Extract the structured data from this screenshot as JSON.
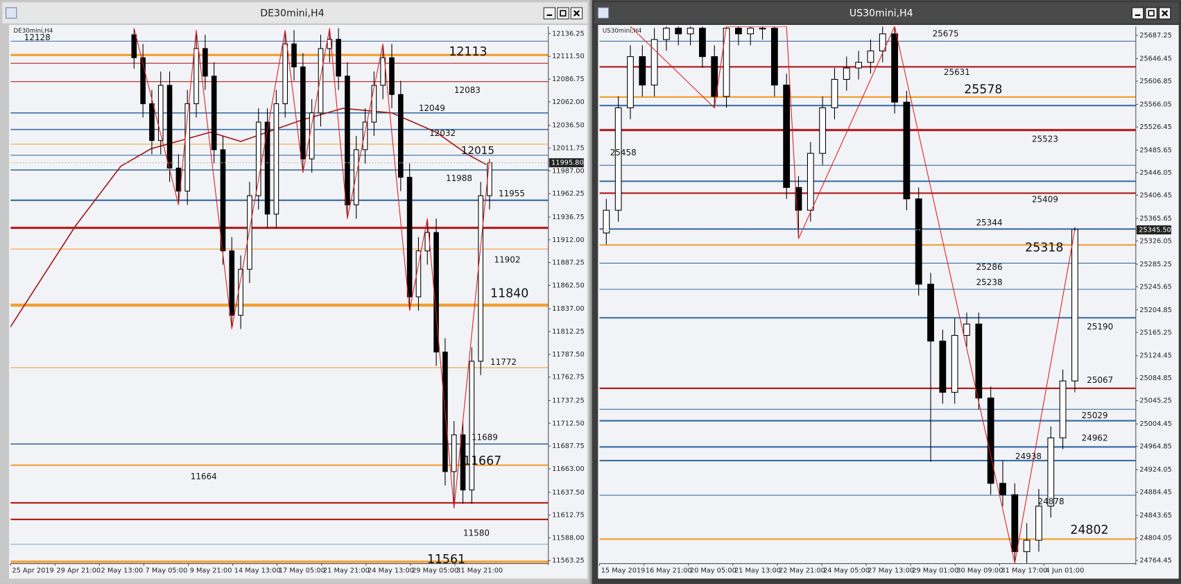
{
  "chart_data": [
    {
      "type": "candlestick",
      "title": "DE30mini,H4",
      "x_labels": [
        "25 Apr 2019",
        "29 Apr 21:00",
        "2 May 13:00",
        "7 May 05:00",
        "9 May 21:00",
        "14 May 13:00",
        "17 May 05:00",
        "21 May 21:00",
        "24 May 13:00",
        "29 May 05:00",
        "31 May 21:00"
      ],
      "open": [
        12135,
        12110,
        12060,
        12020,
        12080,
        11990,
        11965,
        12060,
        12120,
        12090,
        12010,
        11900,
        11830,
        11880,
        11960,
        12040,
        11940,
        12060,
        12125,
        12100,
        12000,
        12050,
        12120,
        12130,
        12090,
        11950,
        12010,
        12040,
        12080,
        12110,
        12070,
        11980,
        11850,
        11900,
        11920,
        11790,
        11660,
        11700,
        11640,
        11780,
        11960
      ],
      "high": [
        12142,
        12125,
        12075,
        12095,
        12095,
        12005,
        12075,
        12140,
        12135,
        12105,
        12025,
        11915,
        11895,
        11975,
        12055,
        12055,
        12075,
        12140,
        12140,
        12115,
        12065,
        12135,
        12142,
        12142,
        12105,
        12025,
        12055,
        12095,
        12125,
        12125,
        12085,
        11995,
        11915,
        11935,
        11935,
        11805,
        11715,
        11715,
        11795,
        11975,
        12000
      ],
      "low": [
        12098,
        12045,
        12005,
        12005,
        11975,
        11950,
        11950,
        12045,
        12075,
        11995,
        11885,
        11815,
        11815,
        11865,
        11945,
        11925,
        11925,
        12045,
        12085,
        11985,
        11985,
        12035,
        12105,
        12075,
        11935,
        11935,
        11995,
        12025,
        12065,
        12055,
        11965,
        11835,
        11835,
        11885,
        11775,
        11645,
        11620,
        11625,
        11625,
        11765,
        11945
      ],
      "close": [
        12110,
        12060,
        12020,
        12080,
        11990,
        11965,
        12060,
        12120,
        12090,
        12010,
        11900,
        11830,
        11880,
        11960,
        12040,
        11940,
        12060,
        12125,
        12100,
        12000,
        12050,
        12120,
        12130,
        12090,
        11950,
        12010,
        12040,
        12080,
        12110,
        12070,
        11980,
        11850,
        11900,
        11920,
        11790,
        11660,
        11700,
        11640,
        11780,
        11960,
        11995.8
      ],
      "up_color": "#ffffff",
      "down_color": "#000000",
      "ylim": [
        11560,
        12144
      ],
      "yticks": [
        12136.25,
        {
          "value": 12111.5,
          "label": "12111.50"
        },
        12086.75,
        {
          "value": 12062,
          "label": "12062.00"
        },
        {
          "value": 12036.5,
          "label": "12036.50"
        },
        12011.75,
        {
          "value": 11987,
          "label": "11987.00"
        },
        11962.25,
        11936.75,
        {
          "value": 11912,
          "label": "11912.00"
        },
        11887.25,
        {
          "value": 11862.5,
          "label": "11862.50"
        },
        {
          "value": 11837,
          "label": "11837.00"
        },
        11812.25,
        {
          "value": 11787.5,
          "label": "11787.50"
        },
        11762.75,
        11737.25,
        {
          "value": 11712.5,
          "label": "11712.50"
        },
        11687.75,
        {
          "value": 11663,
          "label": "11663.00"
        },
        {
          "value": 11637.5,
          "label": "11637.50"
        },
        11612.75,
        {
          "value": 11588,
          "label": "11588.00"
        },
        11563.25
      ],
      "last_price": {
        "value": 11995.8,
        "label": "11995.80"
      },
      "levels": {
        "values": [
          12128,
          12113,
          12104,
          12084,
          12050,
          12032,
          12016,
          12004,
          11988,
          11955,
          11925,
          11902,
          11841,
          11773,
          11690,
          11667,
          11626,
          11608,
          11581,
          11562
        ],
        "colors": [
          "#3a6ea5",
          "#f0a030",
          "#b22222",
          "#b22222",
          "#3a6ea5",
          "#3a6ea5",
          "#f0a030",
          "#3a6ea5",
          "#3a6ea5",
          "#3a6ea5",
          "#b22222",
          "#f0a030",
          "#f0a030",
          "#f0a030",
          "#3a6ea5",
          "#f0a030",
          "#b22222",
          "#b22222",
          "#7fb0d8",
          "#f0a030"
        ],
        "widths": [
          1,
          3,
          1,
          1,
          1.5,
          1.5,
          1,
          1,
          1.5,
          2,
          3,
          1,
          4,
          1,
          1.5,
          2,
          2,
          2,
          1,
          3
        ]
      },
      "level_labels": [
        12128,
        12113,
        12083,
        12049,
        12032,
        12015,
        11988,
        11955,
        11902,
        11840,
        11772,
        11689,
        11667,
        11664,
        11580,
        11561
      ],
      "zigzag": {
        "color": "#e02020",
        "x": [
          0,
          5,
          7,
          11,
          17,
          19,
          22,
          24,
          28,
          31,
          33,
          36,
          40
        ],
        "y": [
          12142,
          11950,
          12140,
          11815,
          12140,
          11985,
          12142,
          11935,
          12125,
          11835,
          11935,
          11620,
          12000
        ]
      },
      "ma": {
        "color": "#a01818",
        "x": [
          -14,
          -6.6,
          -1.5,
          1.9,
          8.6,
          12,
          18.8,
          23.5,
          29,
          34,
          37.5,
          39.6
        ],
        "values": [
          11816,
          11927,
          11992,
          12011,
          12029,
          12019,
          12042,
          12055,
          12050,
          12029,
          12005,
          11994
        ]
      }
    },
    {
      "type": "candlestick",
      "title": "US30mini,H4",
      "x_labels": [
        "15 May 2019",
        "16 May 21:00",
        "20 May 05:00",
        "21 May 13:00",
        "22 May 21:00",
        "24 May 05:00",
        "27 May 13:00",
        "29 May 01:00",
        "30 May 09:00",
        "31 May 17:00",
        "4 Jun 01:00"
      ],
      "open": [
        25340,
        25380,
        25560,
        25650,
        25600,
        25680,
        25700,
        25690,
        25700,
        25650,
        25580,
        25700,
        25690,
        25700,
        25700,
        25600,
        25420,
        25380,
        25480,
        25560,
        25610,
        25630,
        25640,
        25660,
        25690,
        25570,
        25400,
        25250,
        25150,
        25060,
        25160,
        25180,
        25050,
        24900,
        24880,
        24780,
        24800,
        24860,
        24980,
        25080
      ],
      "high": [
        25400,
        25580,
        25670,
        25670,
        25700,
        25703,
        25703,
        25703,
        25703,
        25670,
        25703,
        25703,
        25703,
        25703,
        25703,
        25620,
        25440,
        25500,
        25580,
        25630,
        25650,
        25660,
        25680,
        25703,
        25703,
        25590,
        25420,
        25270,
        25170,
        25190,
        25200,
        25200,
        25070,
        24940,
        24900,
        24830,
        24890,
        25000,
        25100,
        25350
      ],
      "low": [
        25320,
        25360,
        25540,
        25580,
        25580,
        25660,
        25670,
        25670,
        25630,
        25560,
        25560,
        25670,
        25670,
        25680,
        25580,
        25400,
        25330,
        25360,
        25460,
        25540,
        25590,
        25610,
        25620,
        25640,
        25550,
        25380,
        25230,
        24938,
        25040,
        25040,
        25140,
        25030,
        24880,
        24860,
        24760,
        24760,
        24780,
        24840,
        24960,
        25060
      ],
      "close": [
        25380,
        25560,
        25650,
        25600,
        25680,
        25700,
        25690,
        25700,
        25650,
        25580,
        25700,
        25690,
        25700,
        25700,
        25600,
        25420,
        25380,
        25480,
        25560,
        25610,
        25630,
        25640,
        25660,
        25690,
        25570,
        25400,
        25250,
        25150,
        25060,
        25160,
        25180,
        25050,
        24900,
        24880,
        24780,
        24800,
        24860,
        24980,
        25080,
        25345.5
      ],
      "up_color": "#ffffff",
      "down_color": "#000000",
      "ylim": [
        24759,
        25703
      ],
      "yticks": [
        25687.25,
        25646.45,
        25606.85,
        25566.05,
        25526.45,
        25485.65,
        25446.05,
        25406.45,
        25365.65,
        25326.05,
        25285.25,
        25245.65,
        25204.85,
        25165.25,
        25124.45,
        25084.85,
        25045.25,
        25004.45,
        24964.85,
        24924.05,
        24884.45,
        24843.65,
        24804.05,
        24764.45
      ],
      "last_price": {
        "value": 25345.5,
        "label": "25345.50"
      },
      "levels": {
        "values": [
          25677,
          25632,
          25579,
          25564,
          25521,
          25459,
          25431,
          25410,
          25347,
          25319,
          25287,
          25241,
          25191,
          25067,
          25030,
          25010,
          24964,
          24940,
          24879,
          24802
        ],
        "colors": [
          "#3a6ea5",
          "#b22222",
          "#f0a030",
          "#3a6ea5",
          "#b22222",
          "#3a6ea5",
          "#3a6ea5",
          "#b22222",
          "#3a6ea5",
          "#f0a030",
          "#3a6ea5",
          "#3a6ea5",
          "#3a6ea5",
          "#b22222",
          "#3a6ea5",
          "#3a6ea5",
          "#3a6ea5",
          "#3a6ea5",
          "#3a6ea5",
          "#f0a030"
        ],
        "widths": [
          1,
          2,
          2,
          2,
          3,
          1,
          2,
          2,
          2,
          2,
          1,
          1,
          2,
          2,
          1,
          2,
          2,
          2,
          1,
          2
        ]
      },
      "level_labels": [
        25675,
        25631,
        25578,
        25523,
        25458,
        25409,
        25344,
        25318,
        25286,
        25238,
        25190,
        25067,
        25029,
        24962,
        24938,
        24878,
        24802
      ],
      "zigzag": {
        "color": "#e02020",
        "x": [
          2,
          9,
          10,
          15,
          16,
          24,
          34,
          39
        ],
        "y": [
          25703,
          25560,
          25703,
          25703,
          25330,
          25703,
          24760,
          25345.5
        ]
      }
    }
  ]
}
